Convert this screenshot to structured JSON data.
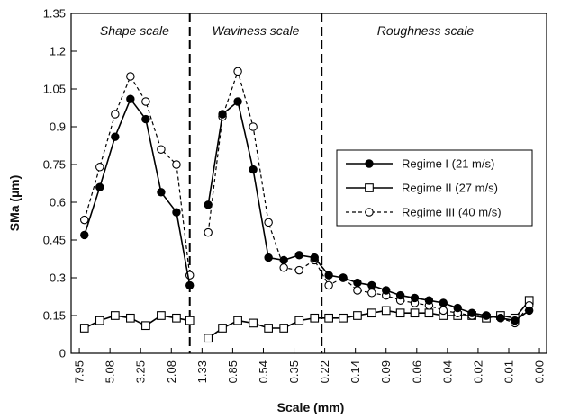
{
  "chart_data": {
    "type": "line",
    "xlabel": "Scale (mm)",
    "ylabel": "SMa (µm)",
    "ylim": [
      0,
      1.35
    ],
    "y_ticks": [
      "0",
      "0.15",
      "0.3",
      "0.45",
      "0.6",
      "0.75",
      "0.9",
      "1.05",
      "1.2",
      "1.35"
    ],
    "x_tick_labels": [
      "7.95",
      "5.08",
      "3.25",
      "2.08",
      "1.33",
      "0.85",
      "0.54",
      "0.35",
      "0.22",
      "0.14",
      "0.09",
      "0.06",
      "0.04",
      "0.02",
      "0.01",
      "0.00"
    ],
    "x_tick_positions": [
      0,
      3,
      6,
      9,
      12,
      15,
      18,
      21,
      24,
      27,
      30,
      33,
      36,
      39,
      42,
      45
    ],
    "x_axis_orientation": "decreasing scale left to right, log-spaced, 44 sampled scales",
    "regions": [
      {
        "label": "Shape scale",
        "from_index": 0,
        "to_index": 10.8
      },
      {
        "label": "Waviness scale",
        "from_index": 10.8,
        "to_index": 23.7
      },
      {
        "label": "Roughness scale",
        "from_index": 23.7,
        "to_index": 44
      }
    ],
    "region_boundaries_index": [
      10.8,
      23.7
    ],
    "legend_position": "right, middle",
    "grid": false,
    "series": [
      {
        "name": "Regime I (21 m/s)",
        "marker": "filled-circle",
        "line": "solid",
        "values": [
          0.47,
          0.66,
          0.86,
          1.01,
          0.93,
          0.64,
          0.56,
          0.27,
          null,
          0.59,
          0.95,
          1.0,
          0.73,
          0.38,
          0.37,
          0.39,
          0.38,
          0.31,
          0.3,
          0.28,
          0.27,
          0.25,
          0.23,
          0.22,
          0.21,
          0.2,
          0.18,
          0.16,
          0.15,
          0.14,
          0.13,
          0.17
        ]
      },
      {
        "name": "Regime II (27 m/s)",
        "marker": "open-square",
        "line": "solid",
        "values": [
          0.1,
          0.13,
          0.15,
          0.14,
          0.11,
          0.15,
          0.14,
          0.13,
          0.11,
          0.06,
          0.1,
          0.13,
          0.12,
          0.1,
          0.1,
          0.13,
          0.14,
          0.14,
          0.14,
          0.15,
          0.16,
          0.17,
          0.16,
          0.16,
          0.16,
          0.15,
          0.15,
          0.15,
          0.14,
          0.15,
          0.14,
          0.21
        ]
      },
      {
        "name": "Regime III (40 m/s)",
        "marker": "open-circle",
        "line": "dashed",
        "values": [
          0.53,
          0.74,
          0.95,
          1.1,
          1.0,
          0.81,
          0.75,
          0.31,
          null,
          0.48,
          0.94,
          1.12,
          0.9,
          0.52,
          0.34,
          0.33,
          0.37,
          0.27,
          0.3,
          0.25,
          0.24,
          0.23,
          0.21,
          0.2,
          0.19,
          0.17,
          0.16,
          0.15,
          0.15,
          0.14,
          0.12,
          0.19
        ]
      }
    ],
    "series_x_index": [
      0.5,
      2,
      3.5,
      5,
      6.5,
      8,
      9.5,
      10.8,
      null,
      12.6,
      14,
      15.5,
      17,
      18.5,
      20,
      21.5,
      23,
      24.4,
      25.8,
      27.2,
      28.6,
      30,
      31.4,
      32.8,
      34.2,
      35.6,
      37,
      38.4,
      39.8,
      41.2,
      42.6,
      44
    ]
  }
}
